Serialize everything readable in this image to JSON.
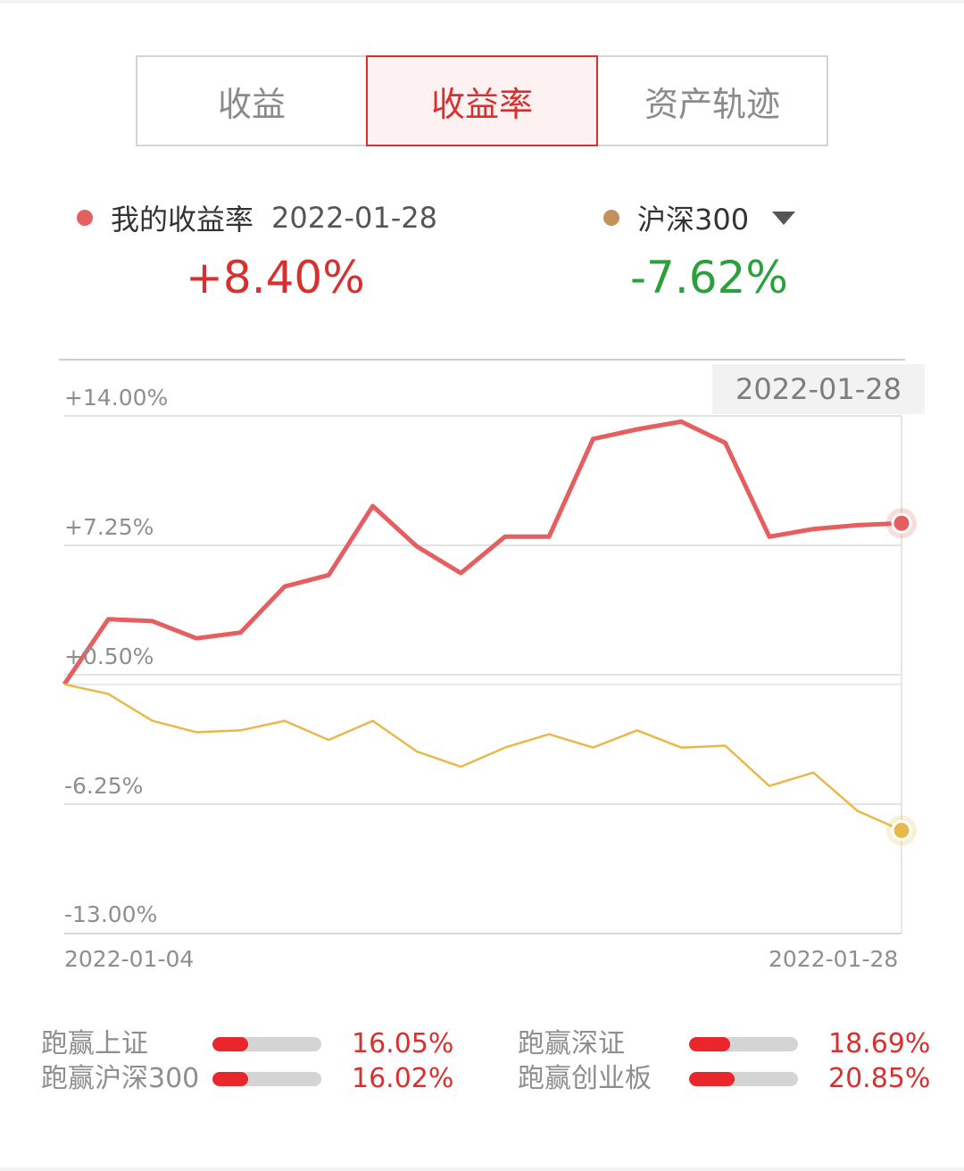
{
  "tabs": [
    {
      "label": "收益",
      "active": false
    },
    {
      "label": "收益率",
      "active": true
    },
    {
      "label": "资产轨迹",
      "active": false
    }
  ],
  "legend": {
    "mine_label": "我的收益率",
    "mine_date": "2022-01-28",
    "mine_value": "+8.40%",
    "index_label": "沪深300",
    "index_value": "-7.62%"
  },
  "colors": {
    "mine": "#e55e60",
    "index": "#e6b94a",
    "positive": "#d9302f",
    "negative": "#2aa13b"
  },
  "chart_data": {
    "type": "line",
    "tooltip_date": "2022-01-28",
    "x_start_label": "2022-01-04",
    "x_end_label": "2022-01-28",
    "y_ticks": [
      "+14.00%",
      "+7.25%",
      "+0.50%",
      "-6.25%",
      "-13.00%"
    ],
    "ylim": [
      -13.0,
      14.0
    ],
    "grid": true,
    "series": [
      {
        "name": "我的收益率",
        "values": [
          0.0,
          3.4,
          3.3,
          2.4,
          2.7,
          5.1,
          5.7,
          9.3,
          7.2,
          5.8,
          7.7,
          7.7,
          12.8,
          13.3,
          13.7,
          12.6,
          7.7,
          8.1,
          8.3,
          8.4
        ]
      },
      {
        "name": "沪深300",
        "values": [
          0.0,
          -0.5,
          -1.9,
          -2.5,
          -2.4,
          -1.9,
          -2.9,
          -1.9,
          -3.5,
          -4.3,
          -3.3,
          -2.6,
          -3.3,
          -2.4,
          -3.3,
          -3.2,
          -5.3,
          -4.6,
          -6.6,
          -7.62
        ]
      }
    ]
  },
  "compare": [
    {
      "label": "跑赢上证",
      "pct": "16.05%",
      "fill": 0.33
    },
    {
      "label": "跑赢深证",
      "pct": "18.69%",
      "fill": 0.38
    },
    {
      "label": "跑赢沪深300",
      "pct": "16.02%",
      "fill": 0.33
    },
    {
      "label": "跑赢创业板",
      "pct": "20.85%",
      "fill": 0.42
    }
  ]
}
